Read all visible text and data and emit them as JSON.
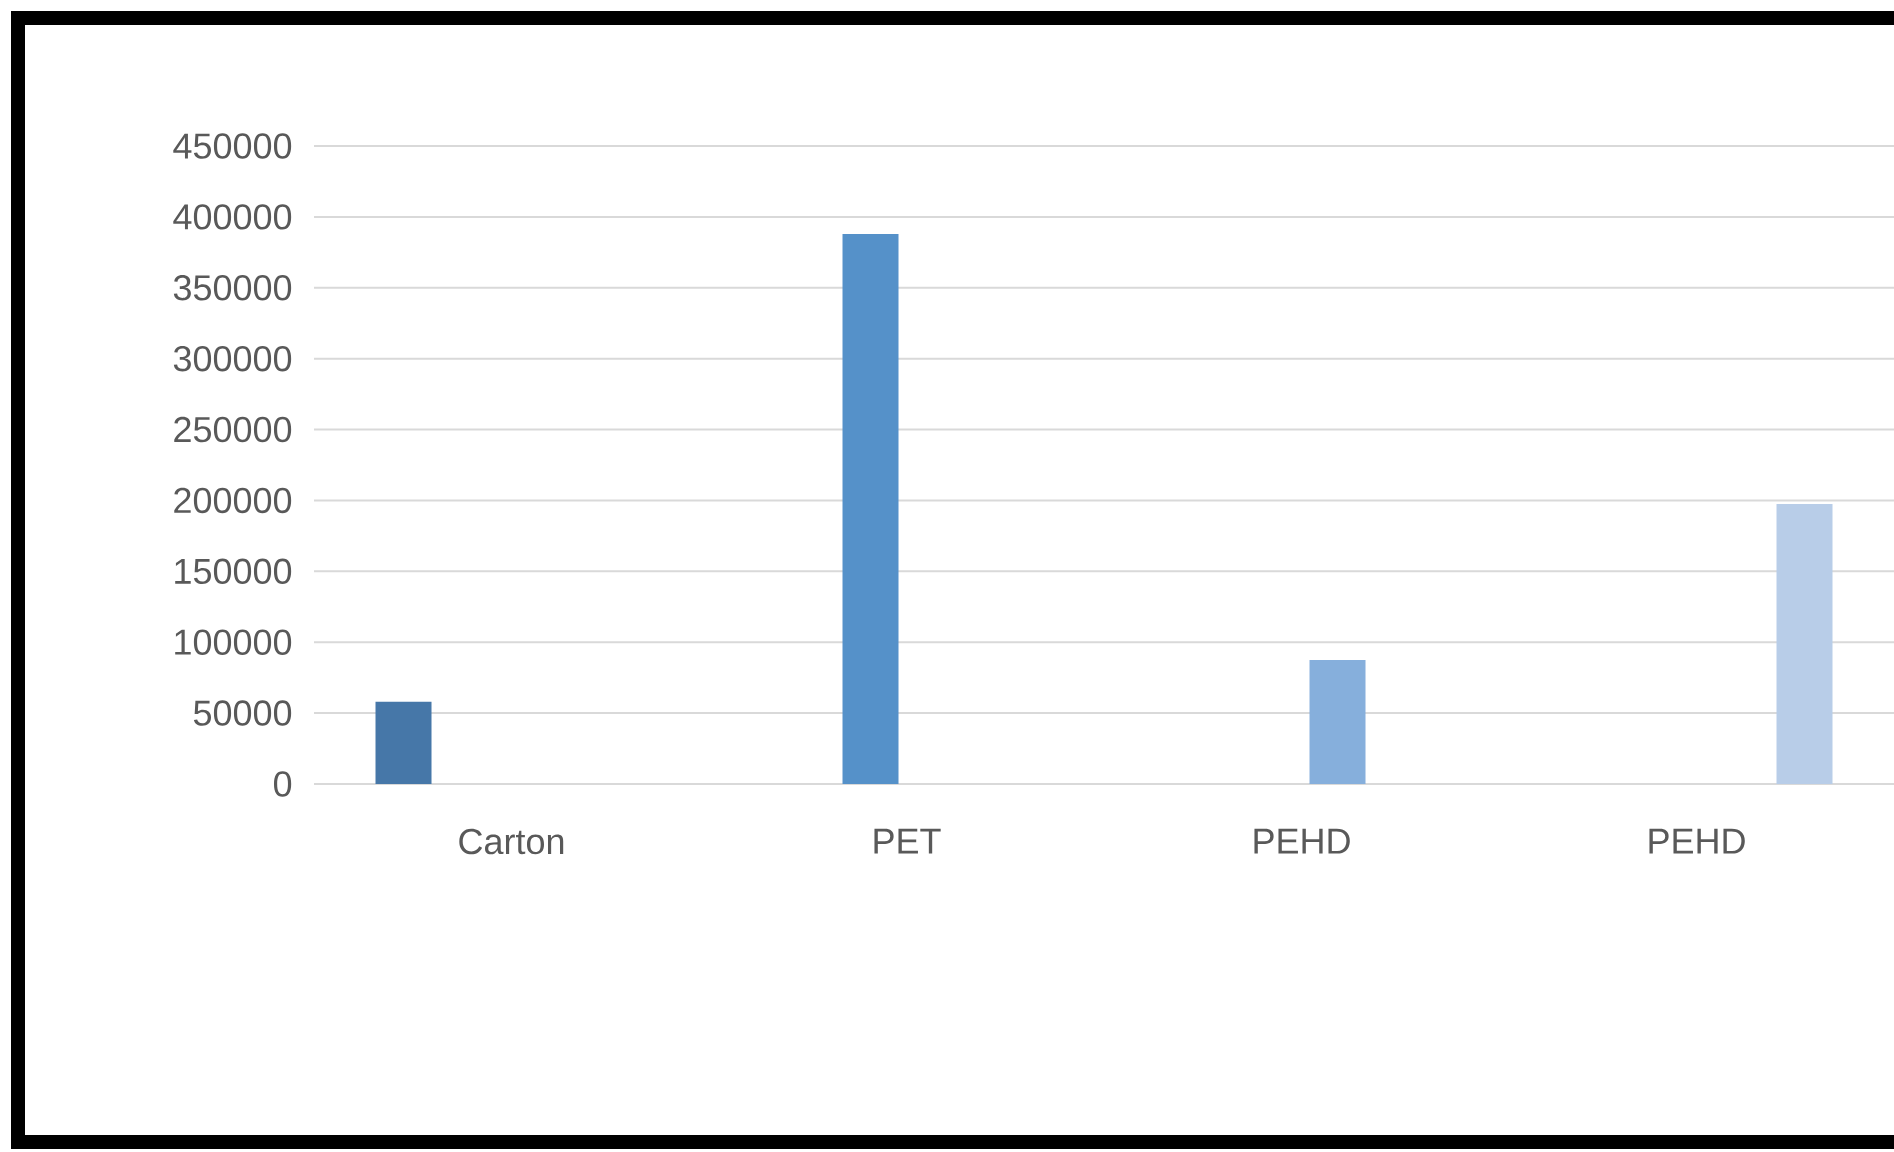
{
  "chart_data": {
    "type": "bar",
    "categories": [
      "Carton",
      "PET",
      "PEHD",
      "PEHD"
    ],
    "series": [
      {
        "color": "#4677a8",
        "values": [
          58000,
          null,
          null,
          null
        ]
      },
      {
        "color": "#5591c9",
        "values": [
          null,
          388000,
          null,
          null
        ]
      },
      {
        "color": "#86afdc",
        "values": [
          null,
          null,
          87500,
          null
        ]
      },
      {
        "color": "#b8cde8",
        "values": [
          null,
          null,
          null,
          197500
        ]
      }
    ],
    "ylim": [
      0,
      450000
    ],
    "yticks": [
      0,
      50000,
      100000,
      150000,
      200000,
      250000,
      300000,
      350000,
      400000,
      450000
    ],
    "grid": "y"
  }
}
